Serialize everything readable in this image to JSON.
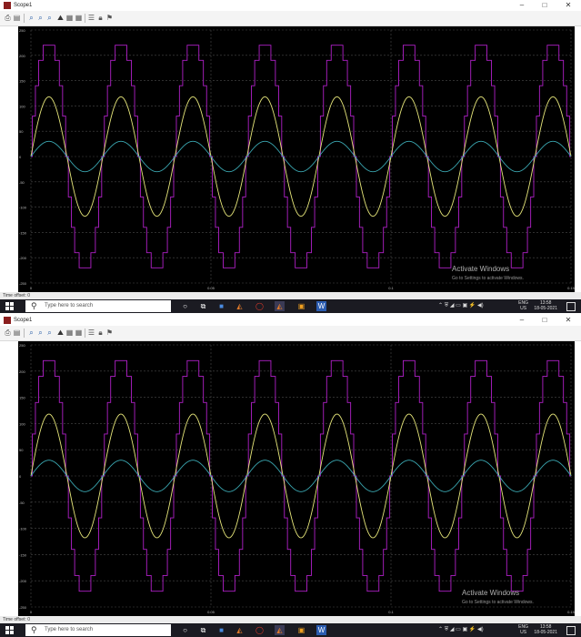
{
  "window": {
    "title": "Scope1",
    "controls": {
      "minimize": "–",
      "maximize": "□",
      "close": "✕"
    }
  },
  "toolbar": {
    "icons": [
      "print-icon",
      "params-icon",
      "zoom-icon",
      "zoom-x-icon",
      "zoom-y-icon",
      "autoscale-icon",
      "save-axes-icon",
      "restore-axes-icon",
      "signal-selector-icon",
      "lock-icon",
      "legend-icon"
    ]
  },
  "status": {
    "text": "Time offset:  0"
  },
  "taskbar": {
    "search_placeholder": "Type here to search",
    "lang": "ENG",
    "lang_sub": "US",
    "time": "13:58",
    "date": "18-05-2021"
  },
  "watermark": {
    "line1": "Activate Windows",
    "line2": "Go to Settings to activate Windows."
  },
  "colors": {
    "plot_bg": "#000000",
    "grid": "#4a4a4a",
    "staircase": "#b020c8",
    "sine_large": "#e6e67a",
    "sine_small": "#3aa6b0",
    "tick": "#bdbdbd"
  },
  "chart_data": [
    {
      "type": "line",
      "xlim": [
        0,
        0.15
      ],
      "ylim": [
        -250,
        250
      ],
      "x_ticks": [
        "0",
        "0.05",
        "0.1",
        "0.15"
      ],
      "y_ticks": [
        "250",
        "200",
        "150",
        "100",
        "50",
        "0",
        "-50",
        "-100",
        "-150",
        "-200",
        "-250"
      ],
      "grid": true,
      "series": [
        {
          "kind": "staircase",
          "color": "#b020c8",
          "frequency_hz": 50,
          "levels": [
            0,
            80,
            140,
            190,
            220
          ],
          "amplitude": 220
        },
        {
          "kind": "sine",
          "color": "#e6e67a",
          "frequency_hz": 50,
          "amplitude": 118
        },
        {
          "kind": "sine",
          "color": "#3aa6b0",
          "frequency_hz": 50,
          "amplitude": 30
        }
      ]
    },
    {
      "type": "line",
      "xlim": [
        0,
        0.15
      ],
      "ylim": [
        -250,
        250
      ],
      "x_ticks": [
        "0",
        "0.05",
        "0.1",
        "0.15"
      ],
      "y_ticks": [
        "250",
        "200",
        "150",
        "100",
        "50",
        "0",
        "-50",
        "-100",
        "-150",
        "-200",
        "-250"
      ],
      "grid": true,
      "series": [
        {
          "kind": "staircase",
          "color": "#b020c8",
          "frequency_hz": 50,
          "levels": [
            0,
            80,
            140,
            190,
            220
          ],
          "amplitude": 220
        },
        {
          "kind": "sine",
          "color": "#e6e67a",
          "frequency_hz": 50,
          "amplitude": 118
        },
        {
          "kind": "sine",
          "color": "#3aa6b0",
          "frequency_hz": 50,
          "amplitude": 30
        }
      ]
    }
  ]
}
